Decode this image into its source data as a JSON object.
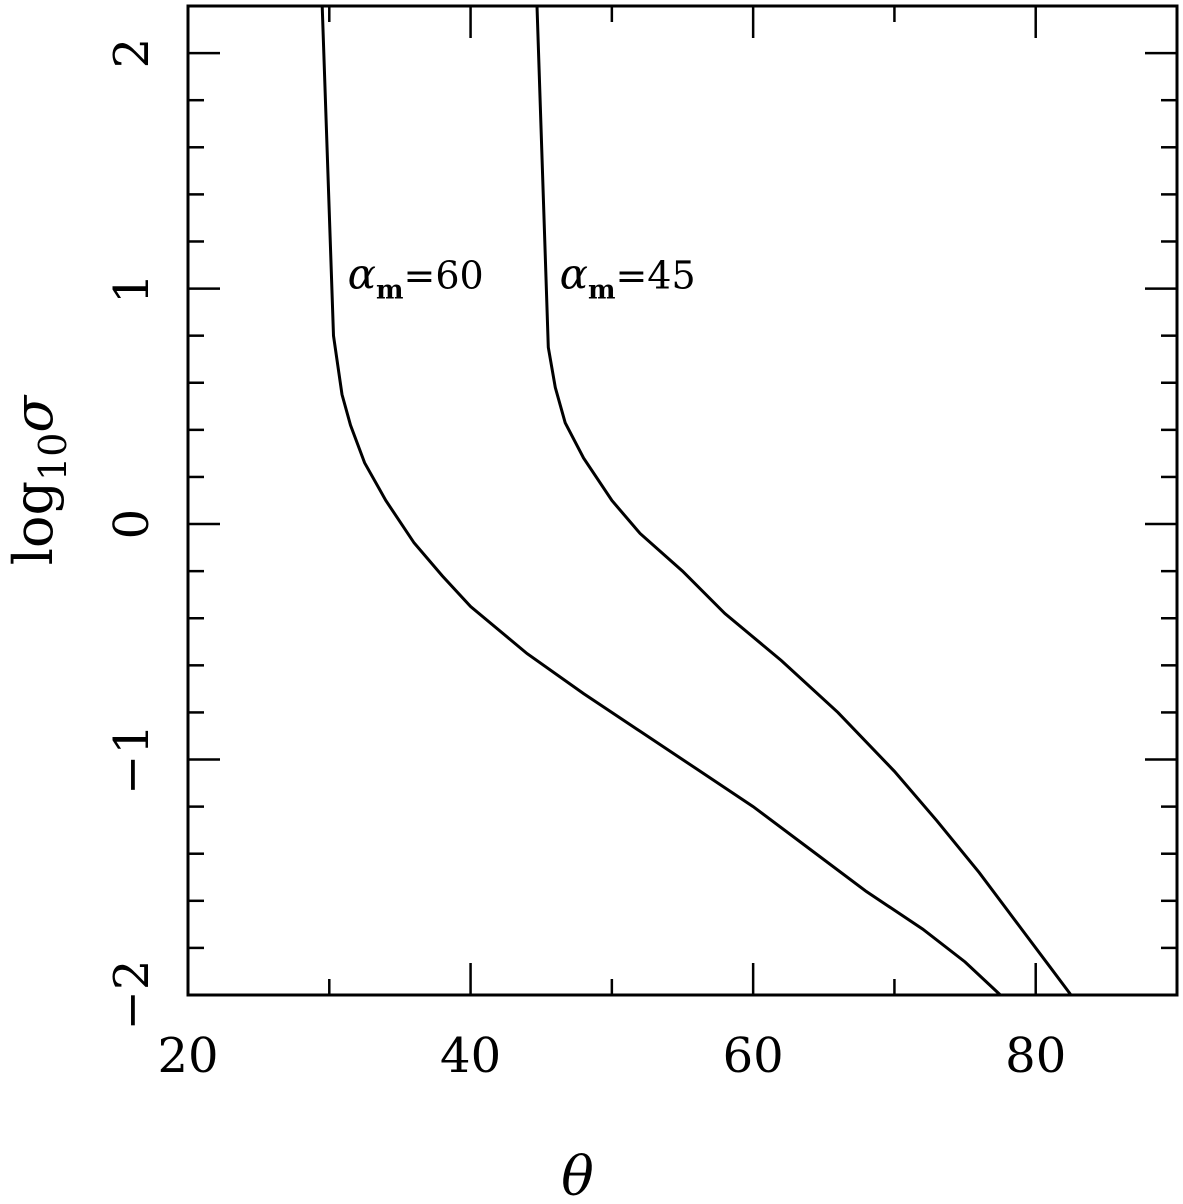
{
  "chart_data": {
    "type": "line",
    "title": "",
    "xlabel": "θ",
    "ylabel": {
      "base": "log",
      "sub": "10",
      "var": "σ"
    },
    "xlim": [
      20,
      90
    ],
    "ylim": [
      -2,
      2.2
    ],
    "x_ticks": [
      20,
      40,
      60,
      80
    ],
    "x_tick_labels": [
      "20",
      "40",
      "60",
      "80"
    ],
    "y_ticks": [
      -2,
      -1,
      0,
      1,
      2
    ],
    "y_tick_labels": [
      "−2",
      "−1",
      "0",
      "1",
      "2"
    ],
    "grid": false,
    "series": [
      {
        "name": "αm=60",
        "label": {
          "greek": "α",
          "sub": "m",
          "rest": "=60"
        },
        "points": [
          [
            29.5,
            2.2
          ],
          [
            30.3,
            0.8
          ],
          [
            30.9,
            0.55
          ],
          [
            31.5,
            0.42
          ],
          [
            32.5,
            0.26
          ],
          [
            34,
            0.1
          ],
          [
            36,
            -0.08
          ],
          [
            38,
            -0.22
          ],
          [
            40,
            -0.35
          ],
          [
            44,
            -0.55
          ],
          [
            48,
            -0.72
          ],
          [
            52,
            -0.88
          ],
          [
            56,
            -1.04
          ],
          [
            60,
            -1.2
          ],
          [
            64,
            -1.38
          ],
          [
            68,
            -1.56
          ],
          [
            72,
            -1.72
          ],
          [
            75,
            -1.86
          ],
          [
            77.5,
            -2.0
          ]
        ]
      },
      {
        "name": "αm=45",
        "label": {
          "greek": "α",
          "sub": "m",
          "rest": "=45"
        },
        "points": [
          [
            44.7,
            2.2
          ],
          [
            45.5,
            0.75
          ],
          [
            46,
            0.58
          ],
          [
            46.7,
            0.43
          ],
          [
            48,
            0.28
          ],
          [
            50,
            0.1
          ],
          [
            52,
            -0.04
          ],
          [
            55,
            -0.2
          ],
          [
            58,
            -0.38
          ],
          [
            62,
            -0.58
          ],
          [
            66,
            -0.8
          ],
          [
            70,
            -1.05
          ],
          [
            73,
            -1.26
          ],
          [
            76,
            -1.48
          ],
          [
            79,
            -1.72
          ],
          [
            81,
            -1.88
          ],
          [
            82.5,
            -2.0
          ]
        ]
      }
    ]
  }
}
